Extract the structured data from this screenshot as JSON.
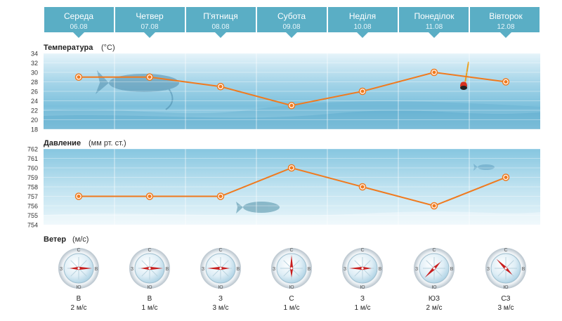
{
  "days": [
    {
      "name": "Середа",
      "date": "06.08"
    },
    {
      "name": "Четвер",
      "date": "07.08"
    },
    {
      "name": "П'ятниця",
      "date": "08.08"
    },
    {
      "name": "Субота",
      "date": "09.08"
    },
    {
      "name": "Неділя",
      "date": "10.08"
    },
    {
      "name": "Понеділок",
      "date": "11.08"
    },
    {
      "name": "Вівторок",
      "date": "12.08"
    }
  ],
  "colors": {
    "header_bg": "#5aaec5",
    "header_text": "#ffffff",
    "line": "#f07a1e",
    "label": "#222222",
    "wind_arrow": "#c81e1e"
  },
  "chart_data": [
    {
      "type": "line",
      "title": "Температура",
      "unit": "(°C)",
      "categories": [
        "06.08",
        "07.08",
        "08.08",
        "09.08",
        "10.08",
        "11.08",
        "12.08"
      ],
      "values": [
        29,
        29,
        27,
        23,
        26,
        30,
        28
      ],
      "ylim": [
        18,
        34
      ],
      "yticks": [
        "18",
        "20",
        "22",
        "24",
        "26",
        "28",
        "30",
        "32",
        "34"
      ],
      "grid": true
    },
    {
      "type": "line",
      "title": "Давление",
      "unit": "(мм рт. ст.)",
      "categories": [
        "06.08",
        "07.08",
        "08.08",
        "09.08",
        "10.08",
        "11.08",
        "12.08"
      ],
      "values": [
        757,
        757,
        757,
        760,
        758,
        756,
        759
      ],
      "ylim": [
        754,
        762
      ],
      "yticks": [
        "754",
        "755",
        "756",
        "757",
        "758",
        "759",
        "760",
        "761",
        "762"
      ],
      "grid": true
    }
  ],
  "wind": {
    "title": "Ветер",
    "unit": "(м/с)",
    "compass_labels": {
      "n": "С",
      "s": "Ю",
      "w": "З",
      "e": "В"
    },
    "items": [
      {
        "dir": "В",
        "speed": "2 м/с",
        "deg": 90
      },
      {
        "dir": "В",
        "speed": "1 м/с",
        "deg": 90
      },
      {
        "dir": "З",
        "speed": "3 м/с",
        "deg": 270
      },
      {
        "dir": "С",
        "speed": "1 м/с",
        "deg": 0
      },
      {
        "dir": "З",
        "speed": "1 м/с",
        "deg": 270
      },
      {
        "dir": "ЮЗ",
        "speed": "2 м/с",
        "deg": 225
      },
      {
        "dir": "СЗ",
        "speed": "3 м/с",
        "deg": 315
      }
    ]
  }
}
